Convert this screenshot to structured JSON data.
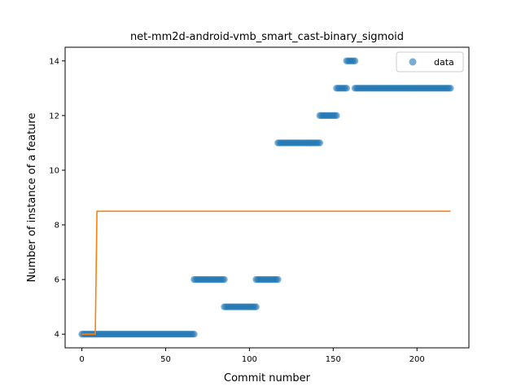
{
  "chart_data": {
    "type": "scatter",
    "title": "net-mm2d-android-vmb_smart_cast-binary_sigmoid",
    "xlabel": "Commit number",
    "ylabel": "Number of instance of a feature",
    "xlim": [
      -10,
      231
    ],
    "ylim": [
      3.5,
      14.5
    ],
    "xticks": [
      0,
      50,
      100,
      150,
      200
    ],
    "yticks": [
      4,
      6,
      8,
      10,
      12,
      14
    ],
    "grid": false,
    "legend": {
      "placement": "top-right",
      "entries": [
        "data"
      ]
    },
    "colors": {
      "scatter": "#1f77b4",
      "fit": "#ff7f0e"
    },
    "series": [
      {
        "name": "data",
        "kind": "scatter",
        "segments": [
          {
            "x_start": 0,
            "x_end": 67,
            "y": 4
          },
          {
            "x_start": 67,
            "x_end": 85,
            "y": 6
          },
          {
            "x_start": 85,
            "x_end": 104,
            "y": 5
          },
          {
            "x_start": 104,
            "x_end": 117,
            "y": 6
          },
          {
            "x_start": 117,
            "x_end": 142,
            "y": 11
          },
          {
            "x_start": 142,
            "x_end": 152,
            "y": 12
          },
          {
            "x_start": 152,
            "x_end": 158,
            "y": 13
          },
          {
            "x_start": 158,
            "x_end": 163,
            "y": 14
          },
          {
            "x_start": 163,
            "x_end": 220,
            "y": 13
          }
        ]
      },
      {
        "name": "",
        "kind": "line",
        "points": [
          [
            0,
            4
          ],
          [
            8,
            4
          ],
          [
            9,
            8.5
          ],
          [
            220,
            8.5
          ]
        ]
      }
    ]
  }
}
